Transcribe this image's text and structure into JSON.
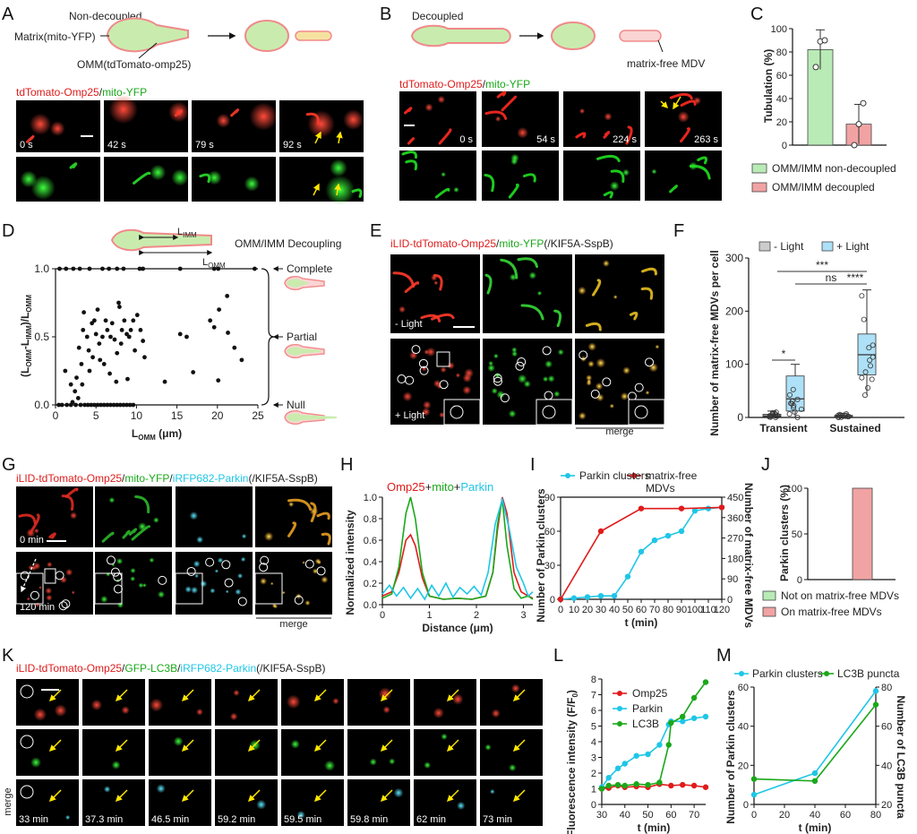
{
  "panels": {
    "A": {
      "label": "A",
      "schematic": {
        "top": "Non-decoupled",
        "matrix": "Matrix(mito-YFP)",
        "omm": "OMM(tdTomato-omp25)"
      },
      "channel_title": {
        "red": "tdTomato-Omp25",
        "sep": "/",
        "green": "mito-YFP"
      },
      "times": [
        "0 s",
        "42 s",
        "79 s",
        "92 s"
      ]
    },
    "B": {
      "label": "B",
      "schematic": {
        "top": "Decoupled",
        "mdv": "matrix-free MDV"
      },
      "channel_title": {
        "red": "tdTomato-Omp25",
        "sep": "/",
        "green": "mito-YFP"
      },
      "times": [
        "0 s",
        "54 s",
        "224 s",
        "263 s"
      ]
    },
    "C": {
      "label": "C",
      "chart_data": {
        "type": "bar",
        "ylabel": "Tubulation (%)",
        "ylim": [
          0,
          100
        ],
        "yticks": [
          "0",
          "20",
          "40",
          "60",
          "80",
          "100"
        ],
        "categories": [
          "OMM/IMM non-decoupled",
          "OMM/IMM decoupled"
        ],
        "values": [
          82,
          18
        ],
        "errors": [
          17,
          17
        ],
        "points": [
          [
            67,
            89,
            90
          ],
          [
            0,
            18,
            36
          ]
        ],
        "colors": [
          "#b9ebb6",
          "#f1a3a3"
        ]
      },
      "legend": [
        "OMM/IMM non-decoupled",
        "OMM/IMM decoupled"
      ]
    },
    "D": {
      "label": "D",
      "schematic_title": "OMM/IMM Decoupling",
      "chart_data": {
        "type": "scatter",
        "ylabel_parts": [
          "(L",
          "OMM",
          "-L",
          "IMM",
          ")/L",
          "OMM"
        ],
        "xlabel_parts": [
          "L",
          "OMM",
          " (μm)"
        ],
        "xlim": [
          0,
          25
        ],
        "ylim": [
          0,
          1
        ],
        "xticks": [
          "0",
          "5",
          "10",
          "15",
          "20",
          "25"
        ],
        "yticks": [
          "0.0",
          "0.5",
          "1.0"
        ],
        "points": [
          [
            2.1,
            0.02
          ],
          [
            2.8,
            0.05
          ],
          [
            1.2,
            0.25
          ],
          [
            2.6,
            0.2
          ],
          [
            3.3,
            0.15
          ],
          [
            4.2,
            0.25
          ],
          [
            2.9,
            0.42
          ],
          [
            3.4,
            0.55
          ],
          [
            3.9,
            0.5
          ],
          [
            4.5,
            0.6
          ],
          [
            5,
            0.52
          ],
          [
            5.4,
            0.45
          ],
          [
            5.8,
            0.5
          ],
          [
            6,
            0.3
          ],
          [
            6.4,
            0.55
          ],
          [
            6.8,
            0.5
          ],
          [
            7.3,
            0.48
          ],
          [
            7.6,
            0.38
          ],
          [
            7.9,
            0.72
          ],
          [
            8.2,
            0.55
          ],
          [
            8.5,
            0.62
          ],
          [
            8.8,
            0.52
          ],
          [
            9.1,
            0.5
          ],
          [
            9.6,
            0.62
          ],
          [
            9.8,
            0.4
          ],
          [
            10.1,
            0.66
          ],
          [
            10.5,
            0.55
          ],
          [
            11,
            0.35
          ],
          [
            3.5,
            0.68
          ],
          [
            4.8,
            0.62
          ],
          [
            5.2,
            0.7
          ],
          [
            6.2,
            0.62
          ],
          [
            7,
            0.6
          ],
          [
            7.8,
            0.75
          ],
          [
            4.1,
            0.4
          ],
          [
            5.5,
            0.33
          ],
          [
            8.1,
            0.45
          ],
          [
            9.3,
            0.55
          ],
          [
            13.5,
            0.17
          ],
          [
            15.4,
            0.52
          ],
          [
            16.2,
            0.5
          ],
          [
            17,
            0.24
          ],
          [
            19.1,
            0.62
          ],
          [
            19.6,
            0.57
          ],
          [
            20.2,
            0.7
          ],
          [
            21.2,
            0.8
          ],
          [
            21.3,
            0.53
          ],
          [
            22.1,
            0.42
          ],
          [
            23,
            0.33
          ],
          [
            20.1,
            0.18
          ],
          [
            7.5,
            0.17
          ],
          [
            2.4,
            0.1
          ],
          [
            1.9,
            0.15
          ],
          [
            6.7,
            0.23
          ],
          [
            8.9,
            0.19
          ],
          [
            4.6,
            0.35
          ],
          [
            10.8,
            0.47
          ],
          [
            3.2,
            0.3
          ]
        ],
        "complete_x": [
          0.5,
          1.3,
          2.2,
          3,
          4.2,
          5.8,
          6.6,
          7.6,
          8.4,
          10.4,
          10.8,
          15.4,
          19.6,
          20.1,
          24.6
        ],
        "null_x": [
          0.4,
          0.8,
          1.4,
          1.9,
          2.5,
          3.1,
          3.6,
          4,
          4.4,
          4.8,
          5.2,
          5.6,
          6,
          6.4,
          6.8,
          7.2,
          7.6,
          8,
          8.4,
          8.8,
          9.2,
          9.6
        ]
      },
      "categories": [
        "Complete",
        "Partial",
        "Null"
      ]
    },
    "E": {
      "label": "E",
      "title": {
        "red": "iLID-tdTomato-Omp25",
        "sep1": "/",
        "green": "mito-YFP",
        "rest": "(/KIF5A-SspB)"
      },
      "minus_light": "- Light",
      "plus_light": "+ Light",
      "merge": "merge"
    },
    "F": {
      "label": "F",
      "chart_data": {
        "type": "box",
        "ylabel": "Number of matrix-free MDVs per cell",
        "ylim": [
          0,
          300
        ],
        "yticks": [
          "0",
          "100",
          "200",
          "300"
        ],
        "categories": [
          "Transient",
          "Sustained"
        ],
        "series": [
          {
            "name": "- Light",
            "color": "#cccccc"
          },
          {
            "name": "+ Light",
            "color": "#aee0f7"
          }
        ],
        "boxes": [
          {
            "group": "Transient",
            "series": "- Light",
            "min": 0,
            "q1": 1,
            "median": 3,
            "q3": 6,
            "max": 12
          },
          {
            "group": "Transient",
            "series": "+ Light",
            "min": 0,
            "q1": 12,
            "median": 35,
            "q3": 78,
            "max": 100
          },
          {
            "group": "Sustained",
            "series": "- Light",
            "min": 0,
            "q1": 1,
            "median": 2,
            "q3": 4,
            "max": 8
          },
          {
            "group": "Sustained",
            "series": "+ Light",
            "min": 42,
            "q1": 80,
            "median": 118,
            "q3": 157,
            "max": 240
          }
        ],
        "significance": [
          "*",
          "ns",
          "***",
          "****"
        ]
      }
    },
    "G": {
      "label": "G",
      "title": {
        "red": "iLID-tdTomato-Omp25",
        "sep1": "/",
        "green": "mito-YFP",
        "sep2": "/",
        "cyan": "iRFP682-Parkin",
        "rest": "(/KIF5A-SspB)"
      },
      "times": [
        "0 min",
        "120 min"
      ],
      "merge": "merge"
    },
    "H": {
      "label": "H",
      "title": {
        "red": "Omp25",
        "sep1": "+",
        "green": "mito",
        "sep2": "+",
        "cyan": "Parkin"
      },
      "chart_data": {
        "type": "line",
        "xlabel": "Distance (μm)",
        "ylabel": "Normalized intensity",
        "xlim": [
          0,
          3.2
        ],
        "ylim": [
          0,
          1
        ],
        "xticks": [
          "0",
          "1",
          "2",
          "3"
        ],
        "yticks": [
          "0.0",
          "0.2",
          "0.4",
          "0.6",
          "0.8",
          "1.0"
        ],
        "series": [
          {
            "name": "Omp25",
            "color": "#e01b1b",
            "x": [
              0,
              0.2,
              0.35,
              0.5,
              0.6,
              0.7,
              0.85,
              1.0,
              1.3,
              1.6,
              1.9,
              2.2,
              2.35,
              2.45,
              2.55,
              2.65,
              2.8,
              2.95,
              3.1,
              3.2
            ],
            "y": [
              0.08,
              0.12,
              0.3,
              0.6,
              0.65,
              0.55,
              0.25,
              0.08,
              0.05,
              0.06,
              0.05,
              0.08,
              0.3,
              0.7,
              1.0,
              0.85,
              0.3,
              0.12,
              0.08,
              0.06
            ]
          },
          {
            "name": "mito",
            "color": "#1aa81a",
            "x": [
              0,
              0.2,
              0.35,
              0.5,
              0.6,
              0.7,
              0.85,
              1.0,
              1.3,
              1.6,
              1.9,
              2.2,
              2.35,
              2.45,
              2.55,
              2.65,
              2.8,
              2.95,
              3.1,
              3.2
            ],
            "y": [
              0.06,
              0.1,
              0.35,
              0.85,
              1.0,
              0.8,
              0.3,
              0.08,
              0.05,
              0.06,
              0.05,
              0.08,
              0.3,
              0.75,
              0.98,
              0.55,
              0.15,
              0.06,
              0.08,
              0.05
            ]
          },
          {
            "name": "Parkin",
            "color": "#1fc6e6",
            "x": [
              0,
              0.15,
              0.3,
              0.45,
              0.6,
              0.75,
              0.9,
              1.05,
              1.2,
              1.35,
              1.5,
              1.65,
              1.8,
              1.95,
              2.1,
              2.25,
              2.4,
              2.55,
              2.7,
              2.85,
              3.0,
              3.1,
              3.2
            ],
            "y": [
              0.1,
              0.18,
              0.08,
              0.16,
              0.06,
              0.15,
              0.05,
              0.18,
              0.08,
              0.2,
              0.07,
              0.16,
              0.1,
              0.17,
              0.09,
              0.3,
              0.75,
              0.98,
              0.7,
              0.35,
              0.2,
              0.08,
              0.12
            ]
          }
        ]
      }
    },
    "I": {
      "label": "I",
      "chart_data": {
        "type": "line",
        "xlabel": "t (min)",
        "ylabel": "Number of Parkin clusters",
        "ylabel_right": "Number of matrix-free MDVs",
        "xlim": [
          0,
          120
        ],
        "ylim": [
          0,
          90
        ],
        "ylim_right": [
          0,
          450
        ],
        "xticks": [
          "0",
          "10",
          "20",
          "30",
          "40",
          "50",
          "60",
          "70",
          "80",
          "90",
          "100",
          "110",
          "120"
        ],
        "yticks": [
          "0",
          "30",
          "60",
          "90"
        ],
        "yticks_right": [
          "0",
          "90",
          "180",
          "270",
          "360",
          "450"
        ],
        "series": [
          {
            "name": "Parkin clusters",
            "color": "#1fc6e6",
            "axis": "left",
            "x": [
              0,
              10,
              20,
              30,
              40,
              50,
              60,
              70,
              80,
              90,
              100,
              110,
              120
            ],
            "y": [
              0,
              1,
              2,
              3,
              3,
              20,
              42,
              52,
              56,
              60,
              78,
              80,
              81
            ]
          },
          {
            "name": "matrix-free MDVs",
            "color": "#e01b1b",
            "axis": "right",
            "x": [
              0,
              30,
              60,
              90,
              120
            ],
            "y": [
              0,
              300,
              400,
              400,
              405
            ]
          }
        ]
      }
    },
    "J": {
      "label": "J",
      "chart_data": {
        "type": "bar",
        "ylabel": "Parkin clusters (%)",
        "ylim": [
          0,
          100
        ],
        "yticks": [
          "0",
          "50",
          "100"
        ],
        "categories": [
          "Not on matrix-free MDVs",
          "On matrix-free MDVs"
        ],
        "values": [
          0,
          100
        ],
        "colors": [
          "#b9ebb6",
          "#f1a3a3"
        ]
      },
      "legend": [
        "Not on matrix-free MDVs",
        "On matrix-free MDVs"
      ]
    },
    "K": {
      "label": "K",
      "title": {
        "red": "iLID-tdTomato-Omp25",
        "sep1": "/",
        "green": "GFP-LC3B",
        "sep2": "/",
        "cyan": "iRFP682-Parkin",
        "rest": "(/KIF5A-SspB)"
      },
      "row_label": "merge",
      "times": [
        "33 min",
        "37.3 min",
        "46.5 min",
        "59.2 min",
        "59.5 min",
        "59.8 min",
        "62 min",
        "73 min"
      ]
    },
    "L": {
      "label": "L",
      "chart_data": {
        "type": "line",
        "xlabel": "t (min)",
        "ylabel_parts": [
          "Fluorescence intensity (F/F",
          "0",
          ")"
        ],
        "xlim": [
          30,
          75
        ],
        "ylim": [
          0,
          8
        ],
        "xticks": [
          "30",
          "40",
          "50",
          "60",
          "70"
        ],
        "yticks": [
          "0",
          "1",
          "2",
          "3",
          "4",
          "5",
          "6",
          "7",
          "8"
        ],
        "series": [
          {
            "name": "Omp25",
            "color": "#e01b1b",
            "x": [
              30,
              33,
              37,
              40,
              45,
              50,
              55,
              60,
              65,
              70,
              75
            ],
            "y": [
              1,
              1.05,
              1.2,
              1.1,
              1.15,
              1.1,
              1.3,
              1.2,
              1.25,
              1.2,
              1.1
            ]
          },
          {
            "name": "Parkin",
            "color": "#1fc6e6",
            "x": [
              30,
              33,
              37,
              40,
              45,
              50,
              55,
              59,
              60,
              65,
              70,
              75
            ],
            "y": [
              1.1,
              1.7,
              2.3,
              2.6,
              3.1,
              3.2,
              3.8,
              5.1,
              5.3,
              5.3,
              5.5,
              5.6
            ]
          },
          {
            "name": "LC3B",
            "color": "#1aa81a",
            "x": [
              30,
              33,
              37,
              40,
              45,
              50,
              55,
              59,
              60,
              65,
              70,
              75
            ],
            "y": [
              1,
              1.2,
              1.25,
              1.2,
              1.3,
              1.25,
              1.4,
              3.8,
              5.2,
              5.6,
              6.8,
              7.8
            ]
          }
        ]
      }
    },
    "M": {
      "label": "M",
      "chart_data": {
        "type": "line",
        "xlabel": "t (min)",
        "ylabel": "Number of Parkin clusters",
        "ylabel_right": "Number of LC3B puncta",
        "xlim": [
          0,
          80
        ],
        "ylim": [
          0,
          60
        ],
        "ylim_right": [
          20,
          80
        ],
        "xticks": [
          "0",
          "20",
          "40",
          "60",
          "80"
        ],
        "yticks": [
          "0",
          "20",
          "40",
          "60"
        ],
        "yticks_right": [
          "20",
          "40",
          "60",
          "80"
        ],
        "series": [
          {
            "name": "Parkin clusters",
            "color": "#1fc6e6",
            "axis": "left",
            "x": [
              0,
              40,
              80
            ],
            "y": [
              5,
              16,
              58
            ]
          },
          {
            "name": "LC3B puncta",
            "color": "#1aa81a",
            "axis": "right",
            "x": [
              0,
              40,
              80
            ],
            "y": [
              33,
              32,
              71
            ]
          }
        ]
      }
    }
  }
}
